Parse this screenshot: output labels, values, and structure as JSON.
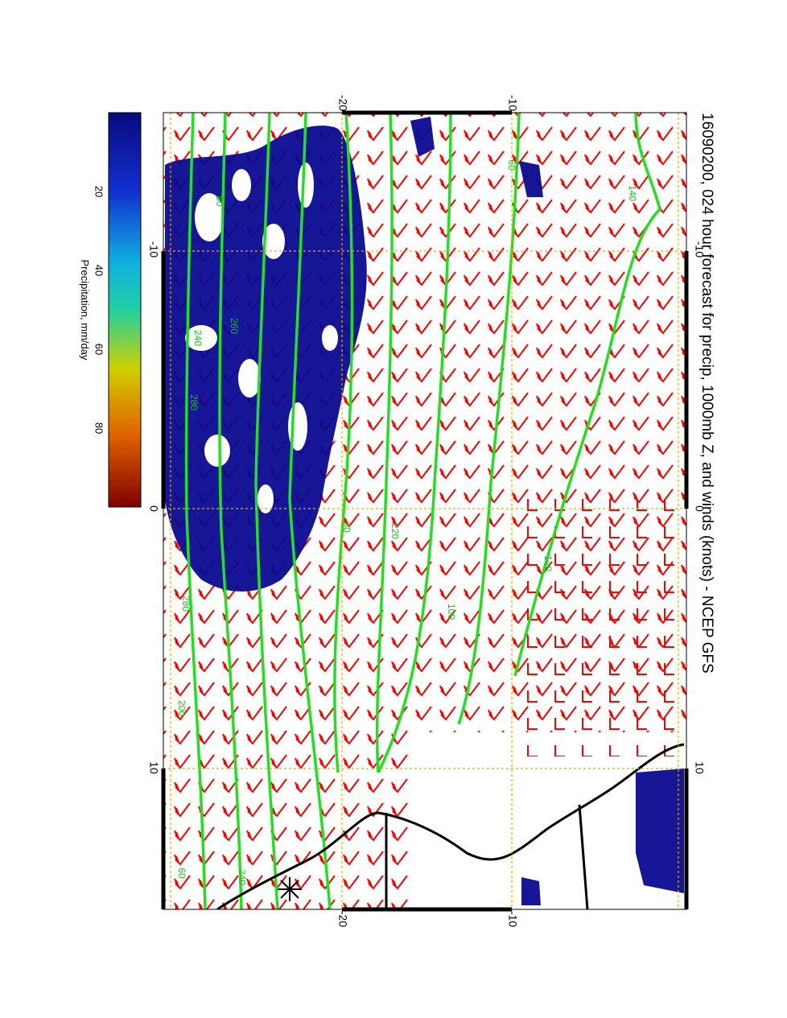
{
  "title": "16090200, 024 hour forecast for precip, 1000mb Z, and winds (knots) - NCEP GFS",
  "colorbar": {
    "label": "Precipitation, mm/day",
    "ticks": [
      "20",
      "40",
      "60",
      "80"
    ],
    "tick_values": [
      20,
      40,
      60,
      80
    ],
    "range": [
      0,
      100
    ],
    "colors": [
      "#0a0a80",
      "#1030d0",
      "#10b0e0",
      "#20d0a0",
      "#d0d000",
      "#e06000",
      "#800000"
    ]
  },
  "map": {
    "longitude_ticks": [
      "-10",
      "0",
      "10"
    ],
    "longitude_values": [
      -10,
      0,
      10
    ],
    "latitude_ticks": [
      "-20",
      "-10"
    ],
    "latitude_values": [
      -20,
      -10
    ],
    "contour_labels": [
      "80",
      "240",
      "260",
      "280",
      "140",
      "100",
      "60",
      "80",
      "280",
      "140",
      "60",
      "200",
      "240",
      "220"
    ],
    "precip_color": "#0a0a90",
    "contour_color": "#20e020",
    "barb_color": "#ff0000",
    "grid_color": "#e0b000"
  }
}
